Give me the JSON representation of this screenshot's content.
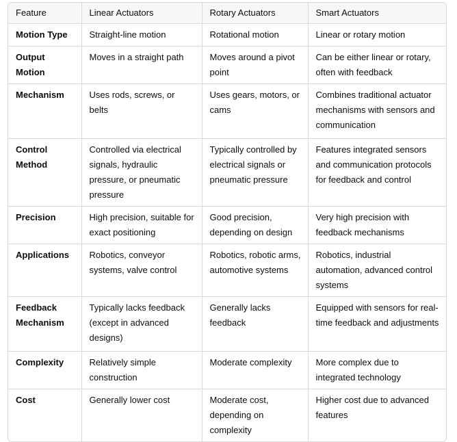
{
  "table": {
    "headers": [
      "Feature",
      "Linear Actuators",
      "Rotary Actuators",
      "Smart Actuators"
    ],
    "rows": [
      {
        "feature": "Motion Type",
        "linear": "Straight-line motion",
        "rotary": "Rotational motion",
        "smart": "Linear or rotary motion"
      },
      {
        "feature": "Output Motion",
        "linear": "Moves in a straight path",
        "rotary": "Moves around a pivot point",
        "smart": "Can be either linear or rotary, often with feedback"
      },
      {
        "feature": "Mechanism",
        "linear": "Uses rods, screws, or belts",
        "rotary": "Uses gears, motors, or cams",
        "smart": "Combines traditional actuator mechanisms with sensors and communication"
      },
      {
        "feature": "Control Method",
        "linear": "Controlled via electrical signals, hydraulic pressure, or pneumatic pressure",
        "rotary": "Typically controlled by electrical signals or pneumatic pressure",
        "smart": "Features integrated sensors and communication protocols for feedback and control"
      },
      {
        "feature": "Precision",
        "linear": "High precision, suitable for exact positioning",
        "rotary": "Good precision, depending on design",
        "smart": "Very high precision with feedback mechanisms"
      },
      {
        "feature": "Applications",
        "linear": "Robotics, conveyor systems, valve control",
        "rotary": "Robotics, robotic arms, automotive systems",
        "smart": "Robotics, industrial automation, advanced control systems"
      },
      {
        "feature": "Feedback Mechanism",
        "linear": "Typically lacks feedback (except in advanced designs)",
        "rotary": "Generally lacks feedback",
        "smart": "Equipped with sensors for real-time feedback and adjustments"
      },
      {
        "feature": "Complexity",
        "linear": "Relatively simple construction",
        "rotary": "Moderate complexity",
        "smart": "More complex due to integrated technology"
      },
      {
        "feature": "Cost",
        "linear": "Generally lower cost",
        "rotary": "Moderate cost, depending on complexity",
        "smart": "Higher cost due to advanced features"
      }
    ]
  }
}
